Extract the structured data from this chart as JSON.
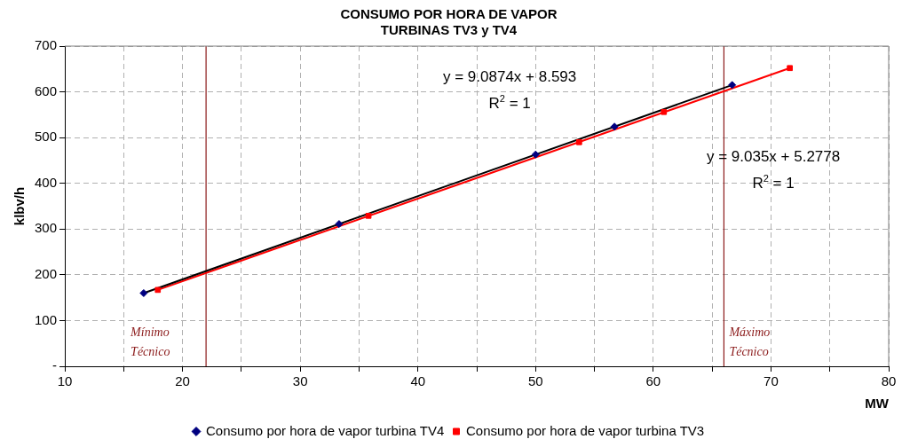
{
  "chart_data": {
    "type": "scatter",
    "title": "CONSUMO POR HORA DE VAPOR\nTURBINAS TV3 y TV4",
    "xlabel": "MW",
    "ylabel": "klbv/h",
    "xlim": [
      10,
      80
    ],
    "xticks": [
      10,
      {
        "value": 15,
        "label": null
      },
      20,
      {
        "value": 25,
        "label": null
      },
      30,
      {
        "value": 35,
        "label": null
      },
      40,
      {
        "value": 45,
        "label": null
      },
      50,
      {
        "value": 55,
        "label": null
      },
      60,
      {
        "value": 65,
        "label": null
      },
      70,
      {
        "value": 75,
        "label": null
      },
      80
    ],
    "ylim": [
      0,
      700
    ],
    "yticks": [
      {
        "value": 0,
        "label": "-"
      },
      100,
      200,
      300,
      400,
      500,
      600,
      700
    ],
    "grid": true,
    "legend": "bottom",
    "series": [
      {
        "type": "line",
        "color": "#000000",
        "x": [
          16.7,
          66.7
        ],
        "values": [
          160,
          615
        ],
        "marker": "none",
        "line_style": "solid"
      },
      {
        "type": "line",
        "color": "#ff0000",
        "x": [
          17.9,
          71.6
        ],
        "values": [
          167,
          652
        ],
        "marker": "none",
        "line_style": "solid"
      },
      {
        "name": "Consumo por hora de vapor turbina TV4",
        "color": "#000080",
        "marker": "diamond",
        "x": [
          16.7,
          33.3,
          50,
          56.7,
          66.7
        ],
        "values": [
          160,
          311,
          463,
          524,
          615
        ]
      },
      {
        "name": "Consumo por hora de vapor turbina TV3",
        "color": "#ff0000",
        "marker": "square",
        "x": [
          17.9,
          35.8,
          53.7,
          60.9,
          71.6
        ],
        "values": [
          167,
          329,
          490,
          556,
          652
        ]
      }
    ],
    "ref_lines": [
      {
        "axis": "x",
        "value": 22,
        "label": "Mínimo Técnico",
        "color": "#8b1a1a"
      },
      {
        "axis": "x",
        "value": 66,
        "label": "Máximo Técnico",
        "color": "#8b1a1a"
      }
    ],
    "annotations": [
      "y = 9.0874x + 8.593\nR$^{2}$ = 1",
      "y = 9.035x + 5.2778\nR$^{2}$ = 1"
    ]
  }
}
